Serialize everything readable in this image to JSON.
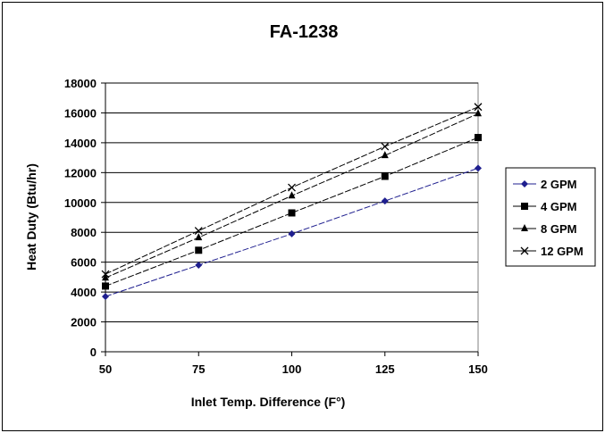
{
  "chart_data": {
    "type": "line",
    "title": "FA-1238",
    "xlabel": "Inlet Temp. Difference (F°)",
    "ylabel": "Heat Duty (Btu/hr)",
    "x": [
      50,
      75,
      100,
      125,
      150
    ],
    "xticks": [
      "50",
      "75",
      "100",
      "125",
      "150"
    ],
    "yticks": [
      "0",
      "2000",
      "4000",
      "6000",
      "8000",
      "10000",
      "12000",
      "14000",
      "16000",
      "18000"
    ],
    "xlim": [
      50,
      150
    ],
    "ylim": [
      0,
      18000
    ],
    "grid": "horizontal",
    "legend_position": "right",
    "series": [
      {
        "name": "2 GPM",
        "marker": "diamond",
        "color": "#1f1f8f",
        "values": [
          3700,
          5800,
          7900,
          10100,
          12300
        ]
      },
      {
        "name": "4 GPM",
        "marker": "square",
        "color": "#000000",
        "values": [
          4400,
          6800,
          9300,
          11750,
          14350
        ]
      },
      {
        "name": "8 GPM",
        "marker": "triangle",
        "color": "#000000",
        "values": [
          4950,
          7650,
          10450,
          13150,
          15950
        ]
      },
      {
        "name": "12 GPM",
        "marker": "x",
        "color": "#000000",
        "values": [
          5200,
          8100,
          11000,
          13750,
          16400
        ]
      }
    ]
  }
}
